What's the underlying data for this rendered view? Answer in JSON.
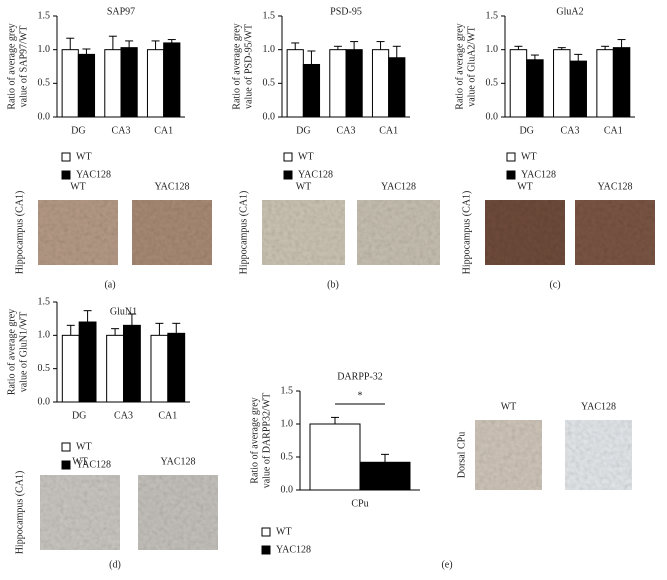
{
  "chart_data": [
    {
      "type": "bar",
      "title": "SAP97",
      "ylabel": [
        "Ratio of average grey",
        "value of SAP97/WT"
      ],
      "categories": [
        "DG",
        "CA3",
        "CA1"
      ],
      "series": [
        {
          "name": "WT",
          "color": "#ffffff",
          "values": [
            1.0,
            1.0,
            1.0
          ],
          "errors": [
            0.17,
            0.2,
            0.13
          ]
        },
        {
          "name": "YAC128",
          "color": "#000000",
          "values": [
            0.93,
            1.03,
            1.1
          ],
          "errors": [
            0.08,
            0.1,
            0.05
          ]
        }
      ],
      "ylim": [
        0,
        1.5
      ],
      "yticks": [
        {
          "value": 0,
          "label": "0.0"
        },
        {
          "value": 0.5,
          "label": "0.5"
        },
        {
          "value": 1,
          "label": "1.0"
        },
        {
          "value": 1.5,
          "label": "1.5"
        }
      ],
      "images": {
        "side_label": "Hippocampus (CA1)",
        "labels": [
          "WT",
          "YAC128"
        ]
      },
      "panel": "(a)"
    },
    {
      "type": "bar",
      "title": "PSD-95",
      "ylabel": [
        "Ratio of average grey",
        "value of PSD-95/WT"
      ],
      "categories": [
        "DG",
        "CA3",
        "CA1"
      ],
      "series": [
        {
          "name": "WT",
          "color": "#ffffff",
          "values": [
            1.0,
            1.0,
            1.0
          ],
          "errors": [
            0.1,
            0.05,
            0.12
          ]
        },
        {
          "name": "YAC128",
          "color": "#000000",
          "values": [
            0.78,
            1.0,
            0.88
          ],
          "errors": [
            0.2,
            0.12,
            0.17
          ]
        }
      ],
      "ylim": [
        0,
        1.5
      ],
      "yticks": [
        {
          "value": 0,
          "label": "0.0"
        },
        {
          "value": 0.5,
          "label": "0.5"
        },
        {
          "value": 1,
          "label": "1.0"
        },
        {
          "value": 1.5,
          "label": "1.5"
        }
      ],
      "images": {
        "side_label": "Hippocampus (CA1)",
        "labels": [
          "WT",
          "YAC128"
        ]
      },
      "panel": "(b)"
    },
    {
      "type": "bar",
      "title": "GluA2",
      "ylabel": [
        "Ratio of average grey",
        "value of GluA2/WT"
      ],
      "categories": [
        "DG",
        "CA3",
        "CA1"
      ],
      "series": [
        {
          "name": "WT",
          "color": "#ffffff",
          "values": [
            1.0,
            1.0,
            1.0
          ],
          "errors": [
            0.05,
            0.03,
            0.05
          ]
        },
        {
          "name": "YAC128",
          "color": "#000000",
          "values": [
            0.85,
            0.83,
            1.03
          ],
          "errors": [
            0.07,
            0.1,
            0.12
          ]
        }
      ],
      "ylim": [
        0,
        1.5
      ],
      "yticks": [
        {
          "value": 0,
          "label": "0.0"
        },
        {
          "value": 0.5,
          "label": "0.5"
        },
        {
          "value": 1,
          "label": "1.0"
        },
        {
          "value": 1.5,
          "label": "1.5"
        }
      ],
      "images": {
        "side_label": "Hippocampus (CA1)",
        "labels": [
          "WT",
          "YAC128"
        ]
      },
      "panel": "(c)"
    },
    {
      "type": "bar",
      "title": "GluN1",
      "ylabel": [
        "Ratio of average grey",
        "value of GluN1/WT"
      ],
      "categories": [
        "DG",
        "CA3",
        "CA1"
      ],
      "series": [
        {
          "name": "WT",
          "color": "#ffffff",
          "values": [
            1.0,
            1.0,
            1.0
          ],
          "errors": [
            0.15,
            0.1,
            0.18
          ]
        },
        {
          "name": "YAC128",
          "color": "#000000",
          "values": [
            1.2,
            1.15,
            1.03
          ],
          "errors": [
            0.17,
            0.17,
            0.15
          ]
        }
      ],
      "ylim": [
        0,
        1.5
      ],
      "yticks": [
        {
          "value": 0,
          "label": "0.0"
        },
        {
          "value": 0.5,
          "label": "0.5"
        },
        {
          "value": 1,
          "label": "1.0"
        },
        {
          "value": 1.5,
          "label": "1.5"
        }
      ],
      "images": {
        "side_label": "Hippocampus (CA1)",
        "labels": [
          "WT",
          "YAC128"
        ]
      },
      "panel": "(d)"
    },
    {
      "type": "bar",
      "title": "DARPP-32",
      "ylabel": [
        "Ratio of average grey",
        "value of DARPP32/WT"
      ],
      "categories": [
        "CPu"
      ],
      "series": [
        {
          "name": "WT",
          "color": "#ffffff",
          "values": [
            1.0
          ],
          "errors": [
            0.1
          ]
        },
        {
          "name": "YAC128",
          "color": "#000000",
          "values": [
            0.42
          ],
          "errors": [
            0.12
          ]
        }
      ],
      "ylim": [
        0,
        1.5
      ],
      "yticks": [
        {
          "value": 0,
          "label": "0.0"
        },
        {
          "value": 0.5,
          "label": "0.5"
        },
        {
          "value": 1,
          "label": "1.0"
        },
        {
          "value": 1.5,
          "label": "1.5"
        }
      ],
      "annotation": "*",
      "images": {
        "side_label": "Dorsal CPu",
        "labels": [
          "WT",
          "YAC128"
        ]
      },
      "panel": "(e)"
    }
  ]
}
